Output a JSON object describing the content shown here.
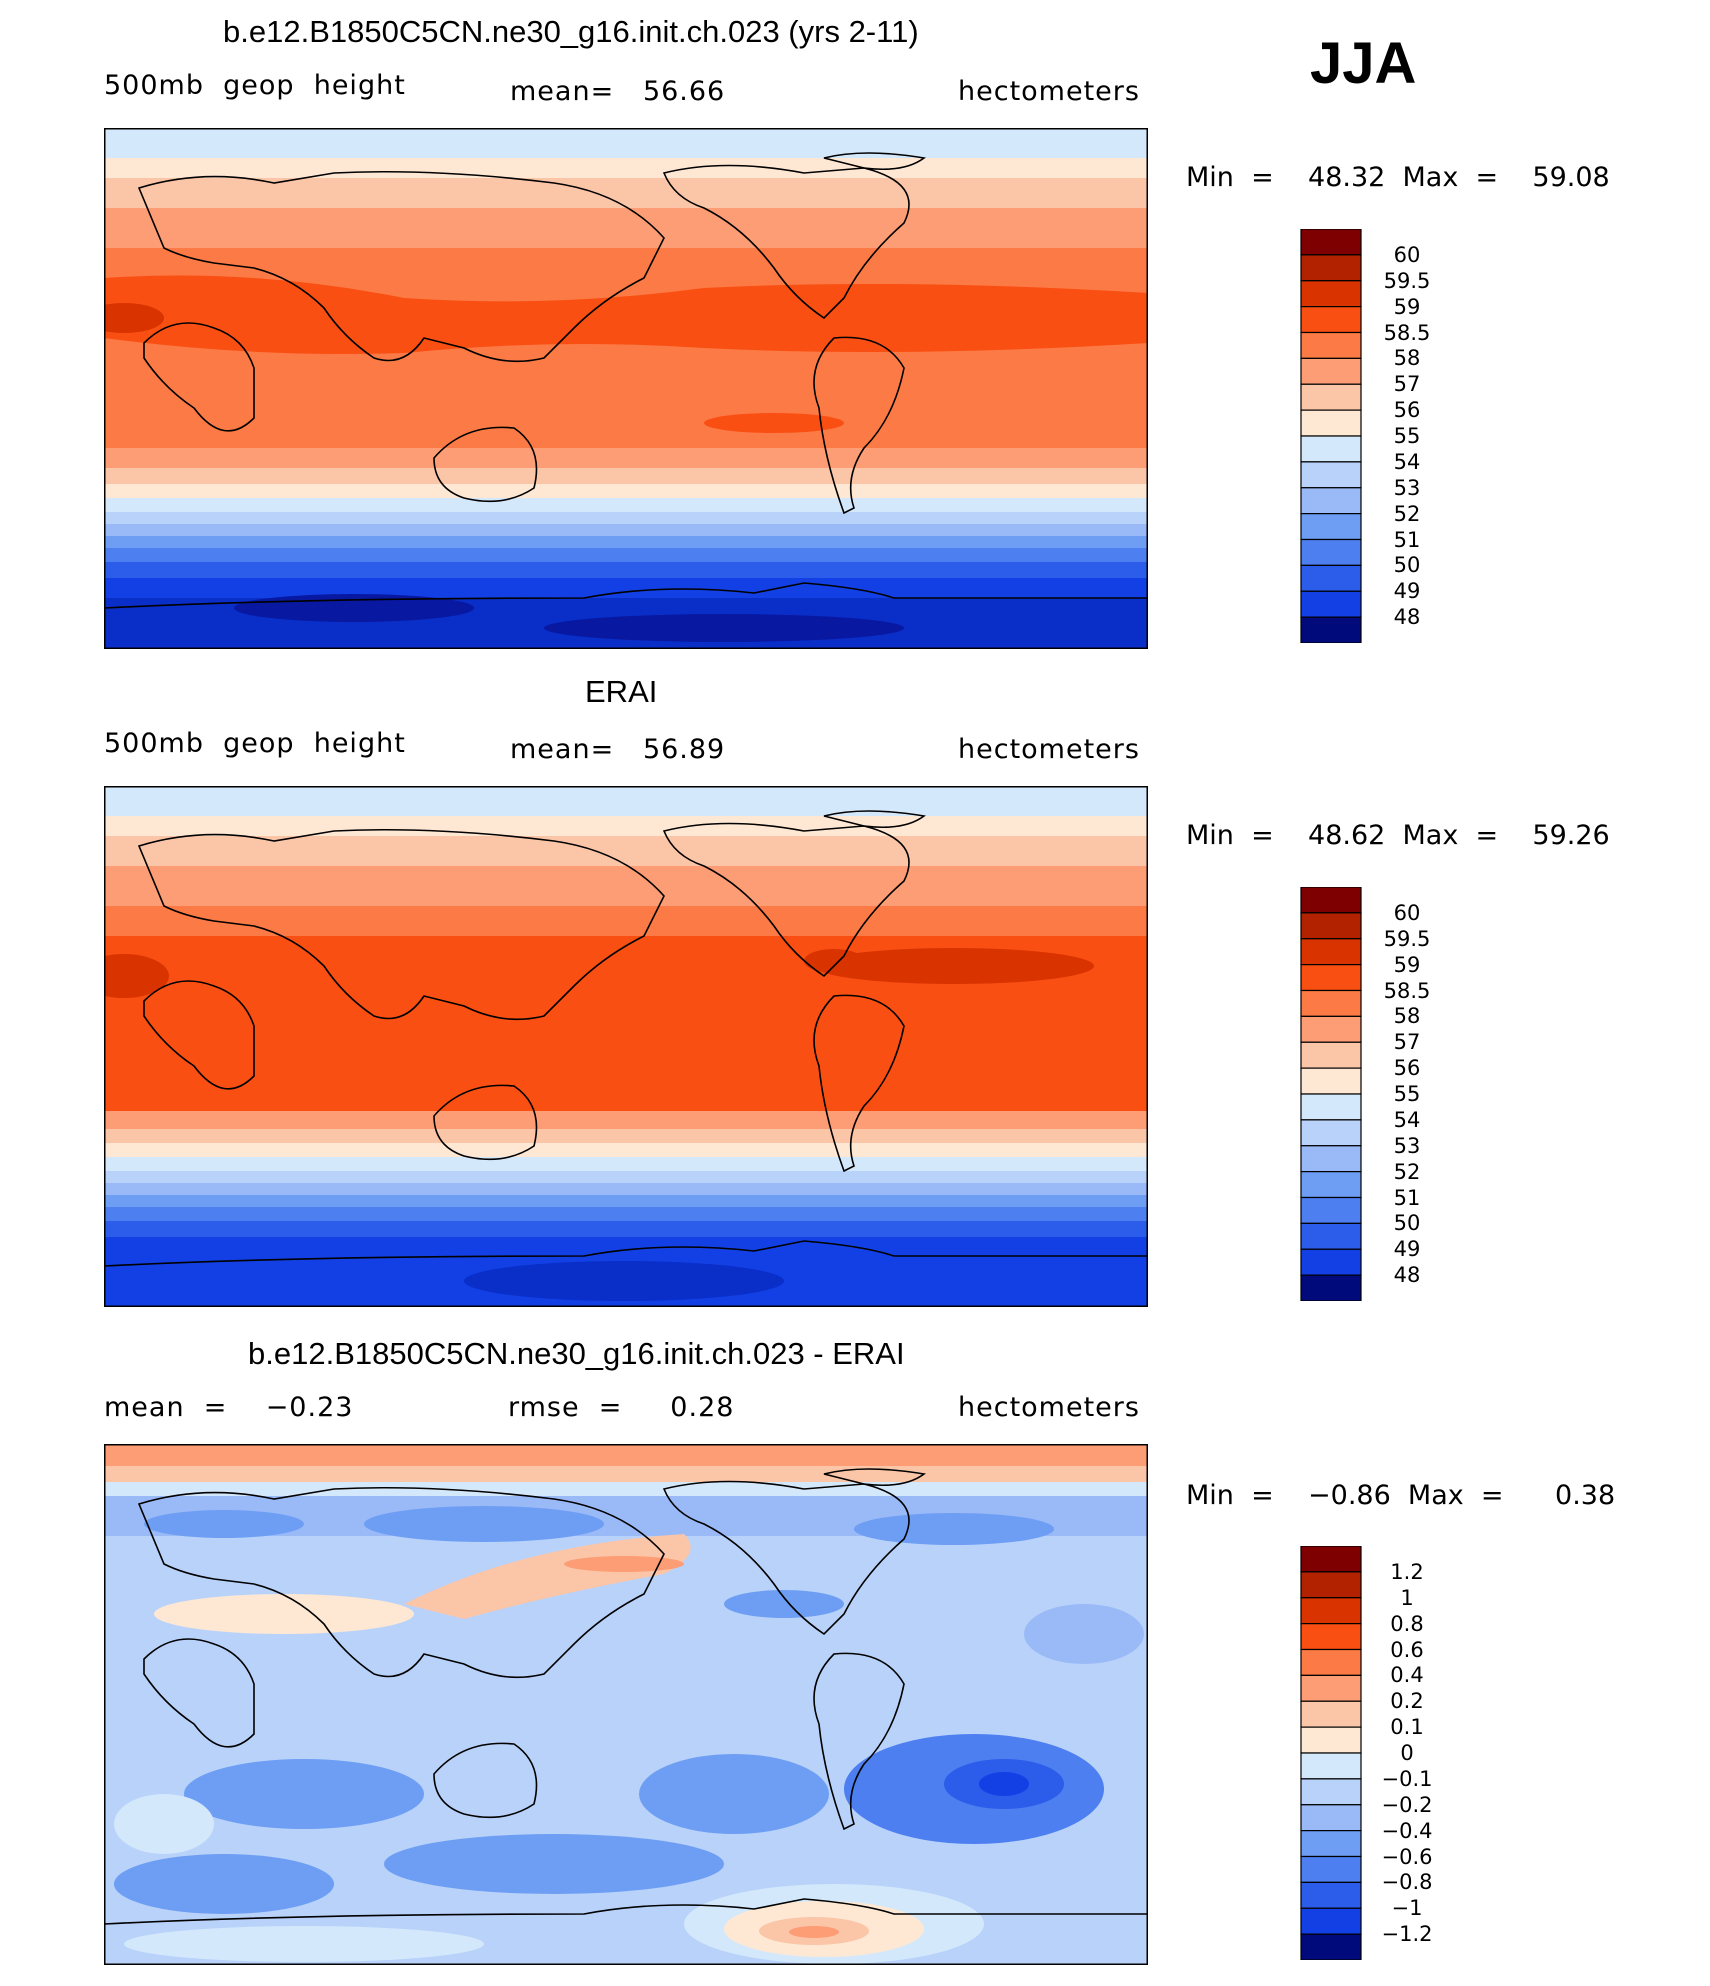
{
  "season": "JJA",
  "colors": {
    "reds": [
      "#7f0000",
      "#b22200",
      "#d93300",
      "#fa4f12",
      "#fc7a45",
      "#fc9d75",
      "#fbc5a8",
      "#fee8d4"
    ],
    "blues": [
      "#d4e8fc",
      "#b8d2fa",
      "#9ab9f7",
      "#6e9ef3",
      "#4d7ff0",
      "#2c5cea",
      "#1240e5",
      "#0a2ec8",
      "#0818a0",
      "#000a7a"
    ]
  },
  "panels": [
    {
      "title": "b.e12.B1850C5CN.ne30_g16.init.ch.023 (yrs 2-11)",
      "left": "500mb  geop  height",
      "center": "mean=   56.66",
      "right": "hectometers",
      "stats": "Min  =    48.32  Max  =    59.08",
      "chart_data": {
        "type": "heatmap",
        "variable": "500mb geop height",
        "units": "hectometers",
        "mean": 56.66,
        "min": 48.32,
        "max": 59.08,
        "colorbar_levels": [
          "60",
          "59.5",
          "59",
          "58.5",
          "58",
          "57",
          "56",
          "55",
          "54",
          "53",
          "52",
          "51",
          "50",
          "49",
          "48"
        ],
        "zonal_profile": [
          {
            "lat": 90,
            "value": 54.2
          },
          {
            "lat": 75,
            "value": 55.6
          },
          {
            "lat": 60,
            "value": 56.5
          },
          {
            "lat": 45,
            "value": 57.8
          },
          {
            "lat": 30,
            "value": 58.6
          },
          {
            "lat": 15,
            "value": 58.6
          },
          {
            "lat": 0,
            "value": 58.3
          },
          {
            "lat": -15,
            "value": 58.2
          },
          {
            "lat": -30,
            "value": 57.2
          },
          {
            "lat": -45,
            "value": 54.5
          },
          {
            "lat": -60,
            "value": 51.0
          },
          {
            "lat": -75,
            "value": 49.3
          },
          {
            "lat": -90,
            "value": 48.6
          }
        ]
      }
    },
    {
      "title": "ERAI",
      "left": "500mb  geop  height",
      "center": "mean=   56.89",
      "right": "hectometers",
      "stats": "Min  =    48.62  Max  =    59.26",
      "chart_data": {
        "type": "heatmap",
        "variable": "500mb geop height",
        "units": "hectometers",
        "mean": 56.89,
        "min": 48.62,
        "max": 59.26,
        "colorbar_levels": [
          "60",
          "59.5",
          "59",
          "58.5",
          "58",
          "57",
          "56",
          "55",
          "54",
          "53",
          "52",
          "51",
          "50",
          "49",
          "48"
        ],
        "zonal_profile": [
          {
            "lat": 90,
            "value": 54.3
          },
          {
            "lat": 75,
            "value": 55.8
          },
          {
            "lat": 60,
            "value": 56.6
          },
          {
            "lat": 45,
            "value": 57.9
          },
          {
            "lat": 30,
            "value": 58.8
          },
          {
            "lat": 15,
            "value": 58.8
          },
          {
            "lat": 0,
            "value": 58.7
          },
          {
            "lat": -15,
            "value": 58.6
          },
          {
            "lat": -30,
            "value": 57.4
          },
          {
            "lat": -45,
            "value": 54.6
          },
          {
            "lat": -60,
            "value": 51.2
          },
          {
            "lat": -75,
            "value": 49.5
          },
          {
            "lat": -90,
            "value": 48.8
          }
        ]
      }
    },
    {
      "title": "b.e12.B1850C5CN.ne30_g16.init.ch.023 - ERAI",
      "left": "mean  =    −0.23",
      "center": "rmse  =     0.28",
      "right": "hectometers",
      "stats": "Min  =    −0.86  Max  =      0.38",
      "chart_data": {
        "type": "heatmap",
        "variable": "500mb geop height difference",
        "units": "hectometers",
        "mean": -0.23,
        "rmse": 0.28,
        "min": -0.86,
        "max": 0.38,
        "colorbar_levels": [
          "1.2",
          "1",
          "0.8",
          "0.6",
          "0.4",
          "0.2",
          "0.1",
          "0",
          "−0.1",
          "−0.2",
          "−0.4",
          "−0.6",
          "−0.8",
          "−1",
          "−1.2"
        ],
        "zonal_profile": [
          {
            "lat": 90,
            "value": 0.2
          },
          {
            "lat": 75,
            "value": -0.1
          },
          {
            "lat": 60,
            "value": -0.3
          },
          {
            "lat": 45,
            "value": -0.2
          },
          {
            "lat": 30,
            "value": -0.1
          },
          {
            "lat": 15,
            "value": -0.2
          },
          {
            "lat": 0,
            "value": -0.2
          },
          {
            "lat": -15,
            "value": -0.25
          },
          {
            "lat": -30,
            "value": -0.35
          },
          {
            "lat": -45,
            "value": -0.3
          },
          {
            "lat": -60,
            "value": -0.15
          },
          {
            "lat": -75,
            "value": 0.1
          },
          {
            "lat": -90,
            "value": -0.1
          }
        ]
      }
    }
  ]
}
